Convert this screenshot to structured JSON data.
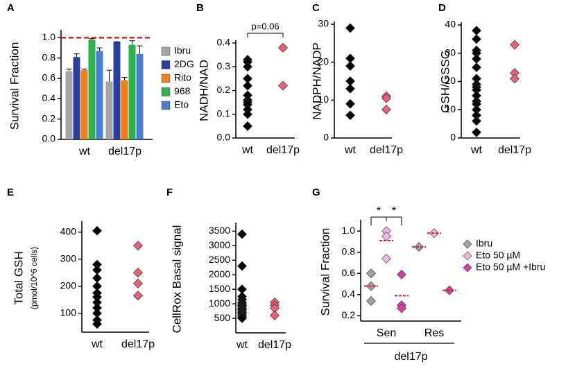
{
  "chart_data": [
    {
      "type": "bar",
      "label": "A",
      "ylabel": "Survival Fraction",
      "categories": [
        "wt",
        "del17p"
      ],
      "series": [
        {
          "name": "Ibru",
          "color": "#a6a6a6",
          "values": [
            0.67,
            0.57
          ],
          "errors": [
            0.02,
            0.11
          ]
        },
        {
          "name": "2DG",
          "color": "#2b3fa0",
          "values": [
            0.81,
            0.96
          ],
          "errors": [
            0.03,
            0.0
          ]
        },
        {
          "name": "Rito",
          "color": "#f07f1a",
          "values": [
            0.68,
            0.58
          ],
          "errors": [
            0.01,
            0.03
          ]
        },
        {
          "name": "968",
          "color": "#2db34a",
          "values": [
            0.98,
            0.93
          ],
          "errors": [
            0.01,
            0.04
          ]
        },
        {
          "name": "Eto",
          "color": "#4a7fd0",
          "values": [
            0.87,
            0.84
          ],
          "errors": [
            0.03,
            0.08
          ]
        }
      ],
      "reference_line": 1.0,
      "reference_color": "#e02020",
      "ylim": [
        0,
        1.05
      ],
      "yticks": [
        {
          "value": 0,
          "label": "0.0"
        },
        0.2,
        0.4,
        0.6,
        0.8,
        {
          "value": 1,
          "label": "1.0"
        }
      ]
    },
    {
      "type": "strip",
      "label": "B",
      "ylabel": "NADH/NAD",
      "annotation": "p=0.06",
      "categories": [
        "wt",
        "del17p"
      ],
      "colors": [
        "#000000",
        "#e8607a"
      ],
      "values": [
        [
          0.33,
          0.32,
          0.3,
          0.25,
          0.22,
          0.18,
          0.16,
          0.15,
          0.14,
          0.12,
          0.1,
          0.05
        ],
        [
          0.38,
          0.22
        ]
      ],
      "ylim": [
        0,
        0.4
      ],
      "yticks": [
        {
          "value": 0,
          "label": "0.0"
        },
        0.1,
        0.2,
        0.3,
        0.4
      ]
    },
    {
      "type": "strip",
      "label": "C",
      "ylabel": "NADPH/NADP",
      "categories": [
        "wt",
        "del17p"
      ],
      "colors": [
        "#000000",
        "#e8607a"
      ],
      "values": [
        [
          29,
          21,
          19,
          15,
          13,
          9,
          6
        ],
        [
          11,
          10.5,
          7.5
        ]
      ],
      "ylim": [
        0,
        30
      ],
      "yticks": [
        0,
        10,
        20,
        30
      ]
    },
    {
      "type": "strip",
      "label": "D",
      "ylabel": "GSH/GSSG",
      "categories": [
        "wt",
        "del17p"
      ],
      "colors": [
        "#000000",
        "#e8607a"
      ],
      "values": [
        [
          38,
          35,
          31,
          30,
          28,
          25,
          21,
          19,
          18,
          17,
          15,
          13,
          12,
          10,
          8,
          6,
          2
        ],
        [
          33,
          23,
          21
        ]
      ],
      "ylim": [
        0,
        40
      ],
      "yticks": [
        0,
        10,
        20,
        30,
        40
      ]
    },
    {
      "type": "strip",
      "label": "E",
      "ylabel": "Total GSH",
      "ylabel_units": "(pmol/10^6 cells)",
      "categories": [
        "wt",
        "del17p"
      ],
      "colors": [
        "#000000",
        "#e8607a"
      ],
      "values": [
        [
          405,
          280,
          260,
          230,
          200,
          175,
          160,
          140,
          120,
          100,
          75,
          60
        ],
        [
          350,
          250,
          210,
          165
        ]
      ],
      "ylim": [
        30,
        430
      ],
      "yticks": [
        100,
        200,
        300,
        400
      ]
    },
    {
      "type": "strip",
      "label": "F",
      "ylabel": "CellRox Basal signal",
      "categories": [
        "wt",
        "del17p"
      ],
      "colors": [
        "#000000",
        "#e8607a"
      ],
      "values": [
        [
          3400,
          2300,
          1500,
          1250,
          1150,
          1050,
          1000,
          950,
          900,
          850,
          800,
          750,
          700,
          650,
          600,
          550,
          500
        ],
        [
          1050,
          950,
          850,
          600
        ]
      ],
      "ylim": [
        0,
        3700
      ],
      "yticks": [
        500,
        1000,
        1500,
        2000,
        2500,
        3000,
        3500
      ]
    },
    {
      "type": "strip",
      "label": "G",
      "ylabel": "Survival Fraction",
      "categories": [
        "Sen",
        "Res"
      ],
      "group_label": "del17p",
      "annotations": [
        "*",
        "*"
      ],
      "mean_color": "#e02020",
      "series": [
        {
          "name": "Ibru",
          "color": "#a0a0a0",
          "values": [
            [
              0.6,
              0.48,
              0.34
            ],
            [
              0.85
            ]
          ],
          "means": [
            0.48,
            0.85
          ]
        },
        {
          "name": "Eto 50 µM",
          "color": "#f0b8e0",
          "values": [
            [
              1.0,
              0.95,
              0.74
            ],
            [
              0.98
            ]
          ],
          "means": [
            0.91,
            0.98
          ]
        },
        {
          "name": "Eto 50 µM +Ibru",
          "color": "#d040a0",
          "values": [
            [
              0.59,
              0.3,
              0.27
            ],
            [
              0.44
            ]
          ],
          "means": [
            0.39,
            0.44
          ]
        }
      ],
      "ylim": [
        0.15,
        1.08
      ],
      "yticks": [
        0.2,
        0.4,
        0.6,
        0.8,
        {
          "value": 1,
          "label": "1.0"
        }
      ]
    }
  ]
}
